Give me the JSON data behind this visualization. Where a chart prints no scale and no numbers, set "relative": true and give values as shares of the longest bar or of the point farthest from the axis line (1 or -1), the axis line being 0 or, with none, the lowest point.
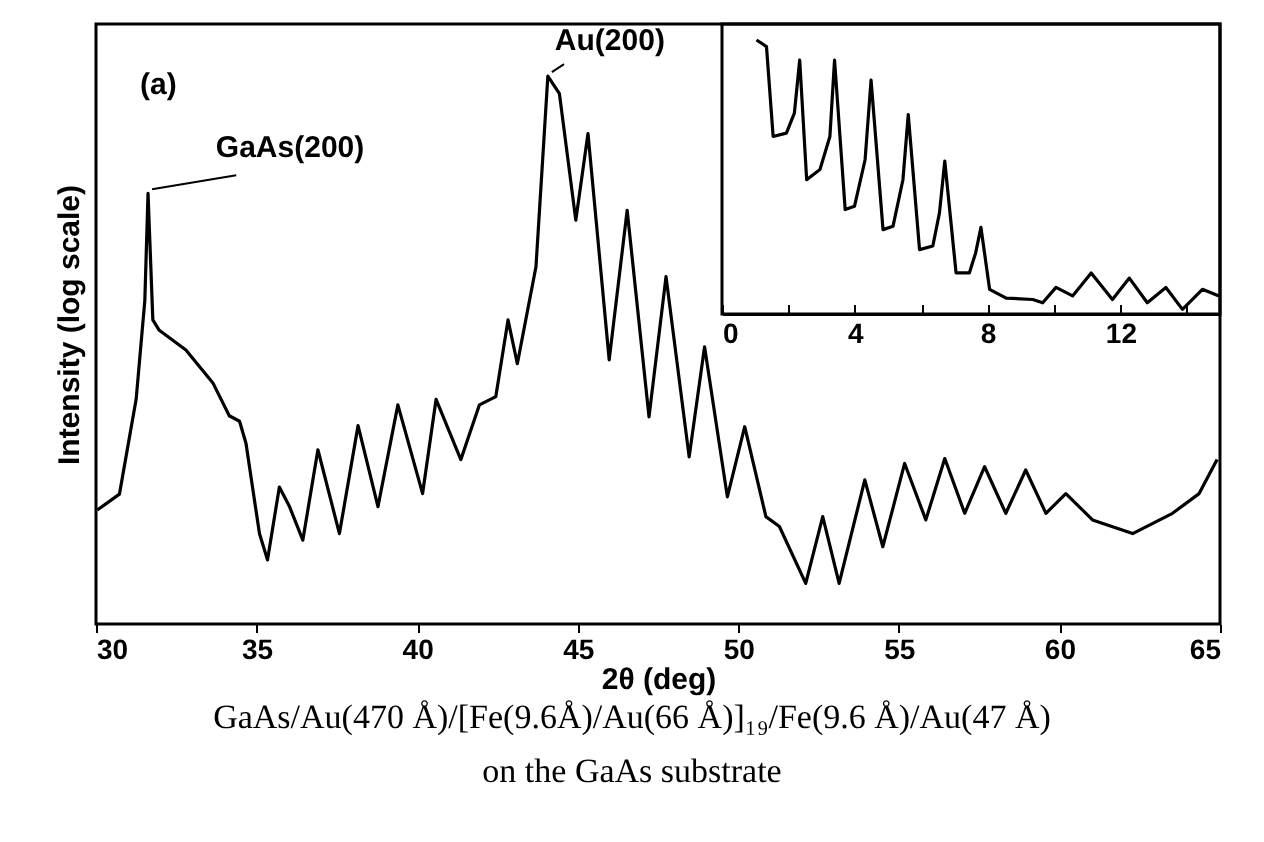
{
  "chart_data": [
    {
      "type": "line",
      "xlabel": "2θ (deg)",
      "ylabel": "Intensity (log scale)",
      "relative": true,
      "color": "#000000",
      "tick_labels": "x",
      "xlim": [
        30,
        65
      ],
      "xticks": [
        30,
        35,
        40,
        45,
        50,
        55,
        60,
        65
      ],
      "x": [
        30.04,
        30.73,
        31.25,
        31.52,
        31.62,
        31.77,
        31.97,
        32.8,
        33.64,
        34.15,
        34.47,
        34.67,
        35.09,
        35.34,
        35.71,
        36.02,
        36.44,
        36.91,
        37.58,
        38.16,
        38.78,
        39.4,
        40.17,
        40.59,
        41.36,
        41.94,
        42.45,
        42.83,
        43.12,
        43.7,
        44.07,
        44.43,
        44.94,
        45.32,
        45.98,
        46.54,
        47.22,
        47.75,
        48.47,
        48.95,
        49.66,
        50.2,
        50.86,
        51.28,
        52.1,
        52.63,
        53.14,
        53.94,
        54.5,
        55.18,
        55.84,
        56.43,
        57.05,
        57.67,
        58.33,
        58.95,
        59.58,
        60.2,
        61.03,
        62.28,
        63.52,
        64.35,
        64.91
      ],
      "values": [
        0.208,
        0.237,
        0.41,
        0.59,
        0.786,
        0.555,
        0.536,
        0.5,
        0.44,
        0.38,
        0.37,
        0.33,
        0.165,
        0.117,
        0.25,
        0.215,
        0.153,
        0.318,
        0.165,
        0.362,
        0.214,
        0.4,
        0.238,
        0.41,
        0.3,
        0.4,
        0.415,
        0.555,
        0.475,
        0.652,
        1.0,
        0.968,
        0.737,
        0.895,
        0.482,
        0.755,
        0.378,
        0.634,
        0.305,
        0.506,
        0.232,
        0.36,
        0.196,
        0.178,
        0.074,
        0.196,
        0.074,
        0.263,
        0.141,
        0.293,
        0.19,
        0.302,
        0.202,
        0.287,
        0.202,
        0.281,
        0.202,
        0.238,
        0.19,
        0.165,
        0.202,
        0.238,
        0.3
      ],
      "annotations": [
        "(a)",
        {
          "text": "GaAs(200)",
          "x": 31.62,
          "y": 0.786
        },
        {
          "text": "Au(200)",
          "x": 44.07,
          "y": 1.0
        },
        "GaAs/Au(470 Å)/[Fe(9.6Å)/Au(66 Å)]₁₉/Fe(9.6 Å)/Au(47 Å)",
        "on the GaAs substrate"
      ]
    },
    {
      "type": "line",
      "relative": true,
      "color": "#000000",
      "tick_labels": "x",
      "xlim": [
        0,
        15
      ],
      "xticks": [
        0,
        {
          "value": 2,
          "label": null
        },
        4,
        {
          "value": 6,
          "label": null
        },
        8,
        {
          "value": 10,
          "label": null
        },
        12,
        {
          "value": 14,
          "label": null
        }
      ],
      "x": [
        1.04,
        1.34,
        1.54,
        1.94,
        2.18,
        2.34,
        2.55,
        2.95,
        3.25,
        3.39,
        3.71,
        3.99,
        4.31,
        4.49,
        4.85,
        5.15,
        5.45,
        5.61,
        5.95,
        6.35,
        6.55,
        6.71,
        7.05,
        7.45,
        7.64,
        7.8,
        8.06,
        8.56,
        9.36,
        9.66,
        10.06,
        10.56,
        11.12,
        11.76,
        12.27,
        12.81,
        13.37,
        13.87,
        14.47,
        14.97
      ],
      "values": [
        1.0,
        0.976,
        0.648,
        0.66,
        0.733,
        0.927,
        0.49,
        0.527,
        0.648,
        0.927,
        0.381,
        0.393,
        0.563,
        0.854,
        0.308,
        0.32,
        0.49,
        0.728,
        0.235,
        0.248,
        0.369,
        0.558,
        0.15,
        0.15,
        0.223,
        0.316,
        0.09,
        0.058,
        0.053,
        0.041,
        0.097,
        0.066,
        0.15,
        0.053,
        0.131,
        0.041,
        0.097,
        0.017,
        0.09,
        0.066
      ]
    }
  ]
}
